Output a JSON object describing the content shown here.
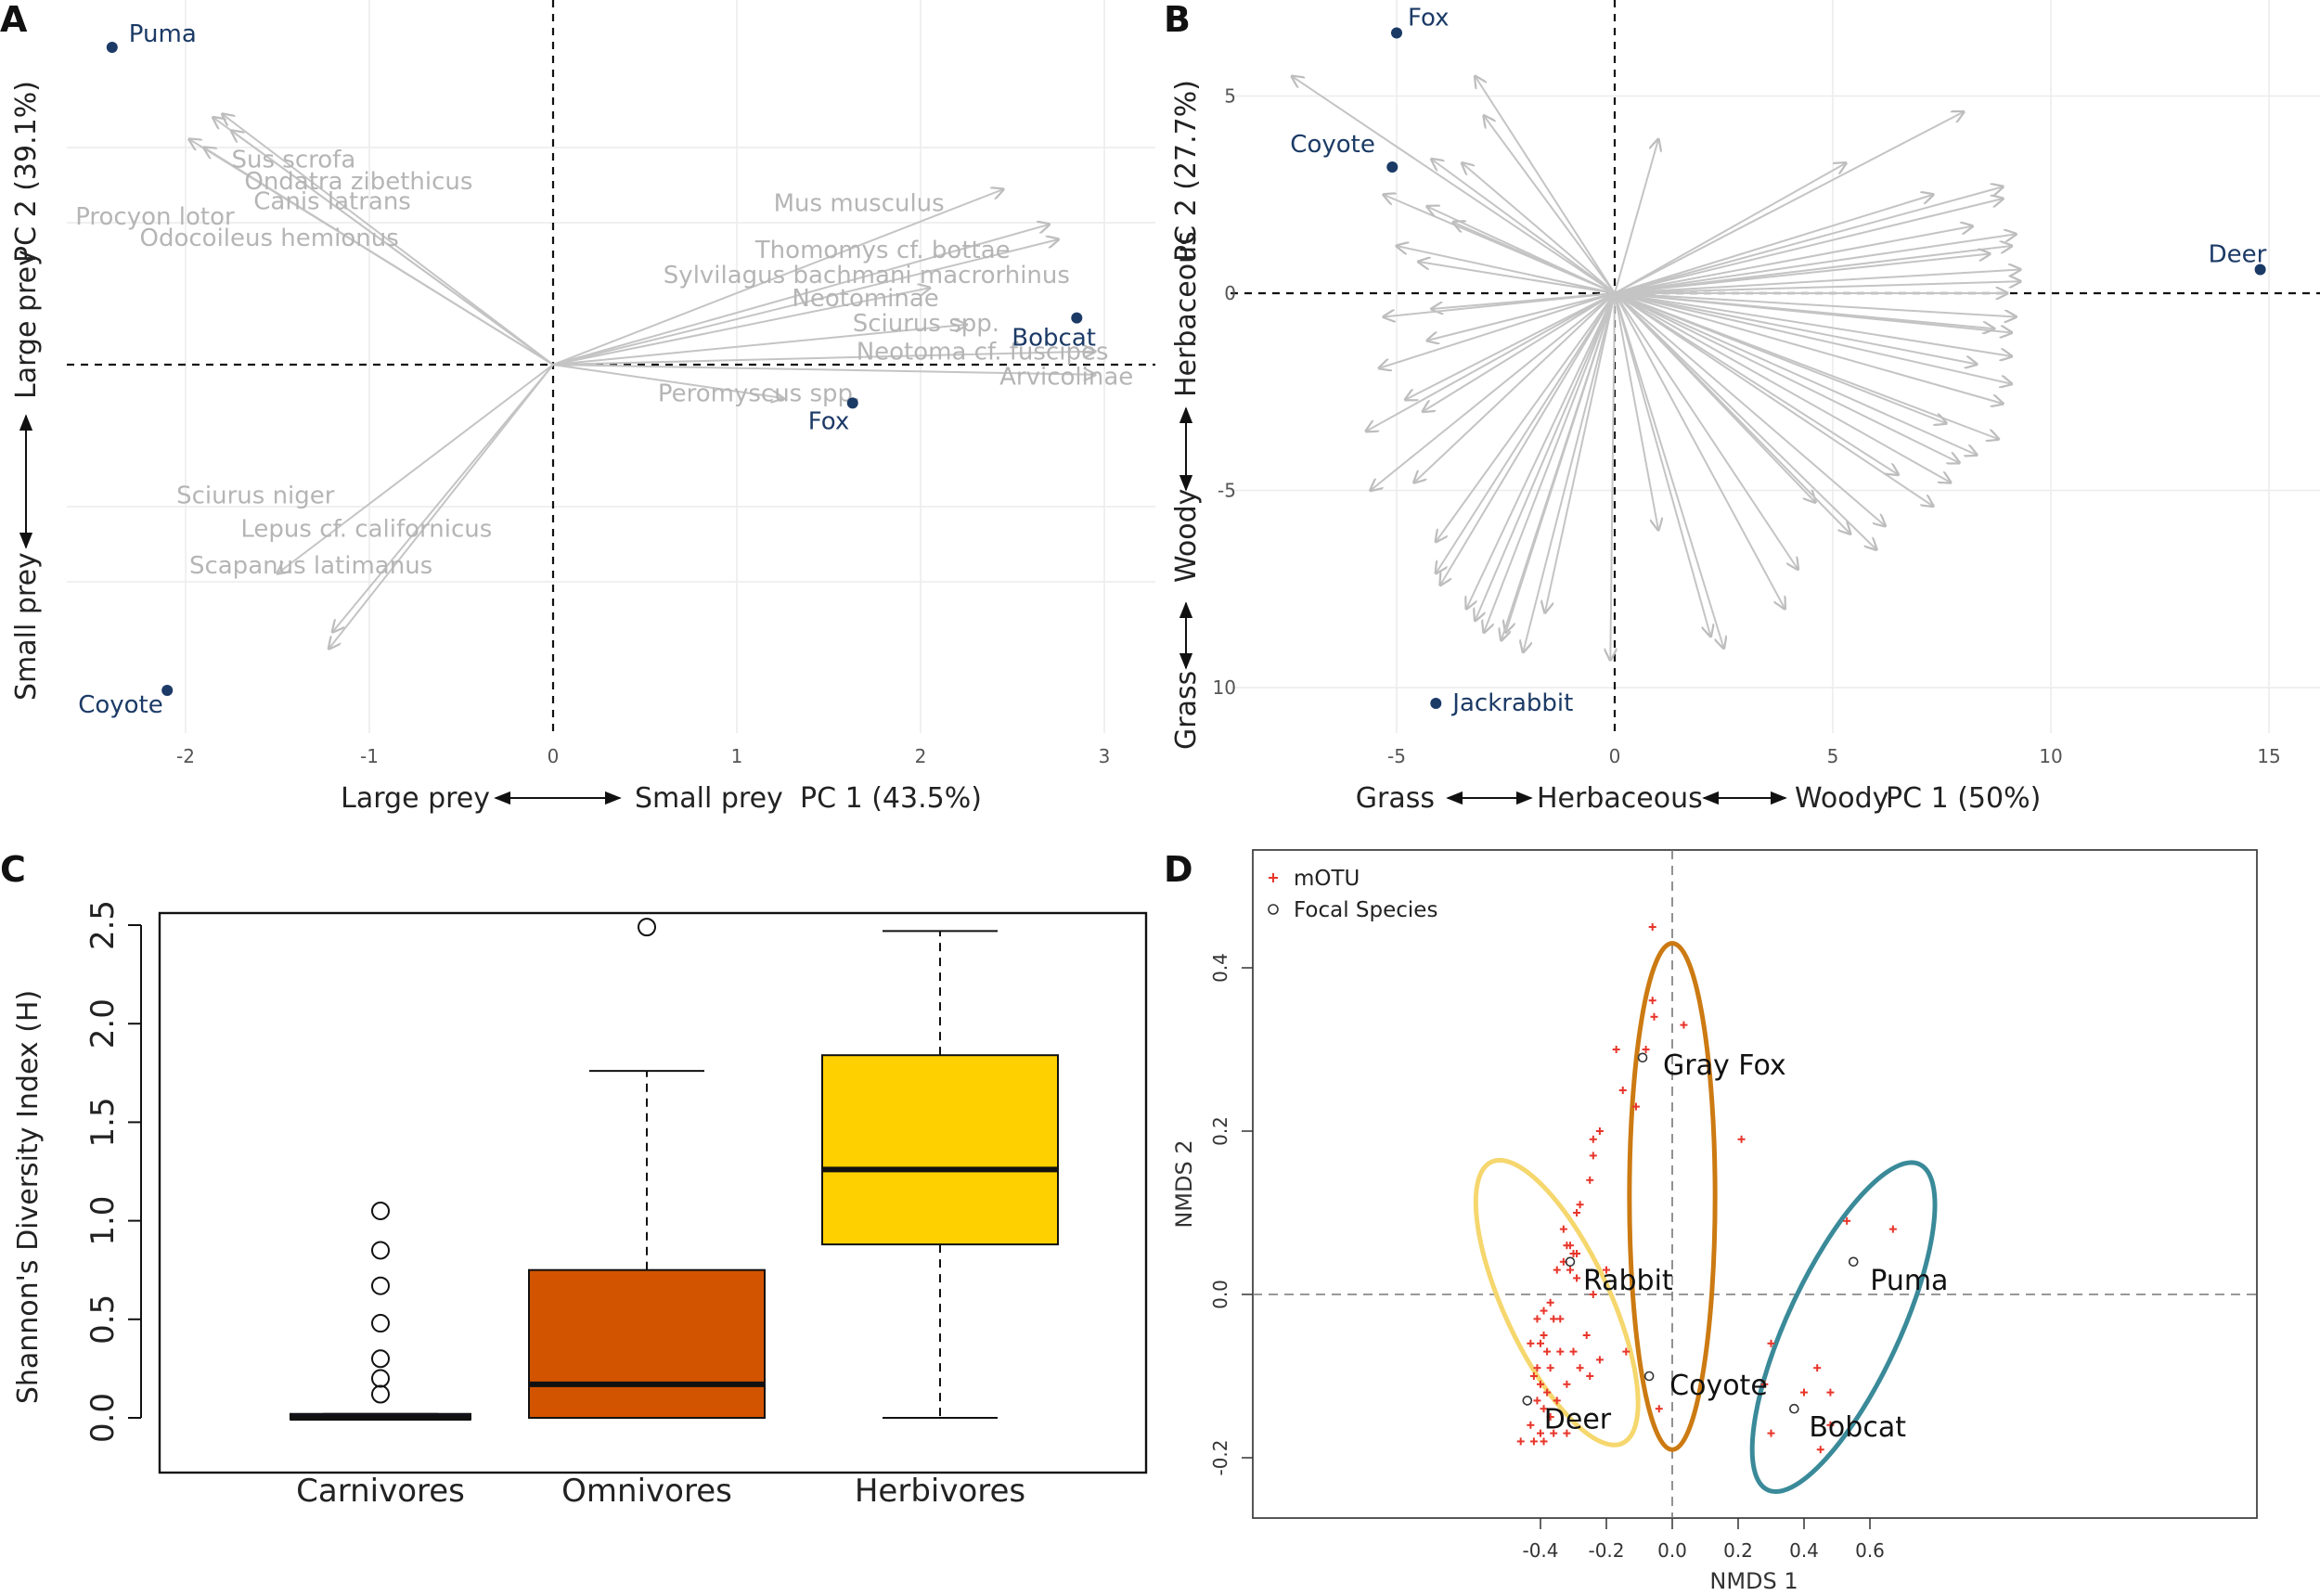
{
  "chart_data": [
    {
      "panel": "A",
      "type": "scatter",
      "xlabel": "PC 1 (43.5%)",
      "xlabel_left": "Large prey",
      "xlabel_right": "Small prey",
      "ylabel": "PC 2 (39.1%)",
      "ylabel_bottom": "Small prey",
      "ylabel_top": "Large prey",
      "x_ticks": [
        -2,
        -1,
        0,
        1,
        2,
        3
      ],
      "y_ticks": [],
      "points": [
        {
          "name": "Puma",
          "x": -2.4,
          "y": 1.9
        },
        {
          "name": "Coyote",
          "x": -2.1,
          "y": -1.95
        },
        {
          "name": "Bobcat",
          "x": 2.85,
          "y": 0.28
        },
        {
          "name": "Fox",
          "x": 1.63,
          "y": -0.23
        }
      ],
      "loadings": [
        {
          "name": "Sus scrofa",
          "x": -1.8,
          "y": 1.5
        },
        {
          "name": "Ondatra zibethicus",
          "x": -1.85,
          "y": 1.48
        },
        {
          "name": "Canis latrans",
          "x": -1.75,
          "y": 1.4
        },
        {
          "name": "Procyon lotor",
          "x": -1.98,
          "y": 1.35
        },
        {
          "name": "Odocoileus hemionus",
          "x": -1.9,
          "y": 1.3
        },
        {
          "name": "Mus musculus",
          "x": 2.45,
          "y": 1.05
        },
        {
          "name": "Thomomys cf. bottae",
          "x": 2.7,
          "y": 0.84
        },
        {
          "name": "Sylvilagus bachmani macrorhinus",
          "x": 2.75,
          "y": 0.75
        },
        {
          "name": "Neotominae",
          "x": 2.05,
          "y": 0.46
        },
        {
          "name": "Sciurus spp.",
          "x": 2.25,
          "y": 0.24
        },
        {
          "name": "Neotoma cf. fuscipes",
          "x": 2.95,
          "y": 0.08
        },
        {
          "name": "Arvicolinae",
          "x": 2.95,
          "y": -0.06
        },
        {
          "name": "Peromyscus spp.",
          "x": 1.25,
          "y": -0.2
        },
        {
          "name": "Sciurus niger",
          "x": -1.5,
          "y": -1.25
        },
        {
          "name": "Lepus cf. californicus",
          "x": -1.2,
          "y": -1.6
        },
        {
          "name": "Scapanus latimanus",
          "x": -1.22,
          "y": -1.7
        }
      ]
    },
    {
      "panel": "B",
      "type": "scatter",
      "xlabel": "PC 1 (50%)",
      "xlabel_left": "Grass",
      "xlabel_mid": "Herbaceous",
      "xlabel_right": "Woody",
      "ylabel": "PC 2 (27.7%)",
      "ylabel_bottom": "Grass",
      "ylabel_mid": "Woody",
      "ylabel_top": "Herbaceous",
      "x_ticks": [
        -5,
        0,
        5,
        10,
        15
      ],
      "y_ticks": [
        5,
        0,
        -5,
        10
      ],
      "points": [
        {
          "name": "Fox",
          "x": -5.0,
          "y": 6.6
        },
        {
          "name": "Coyote",
          "x": -5.1,
          "y": 3.2
        },
        {
          "name": "Deer",
          "x": 14.8,
          "y": 0.6
        },
        {
          "name": "Jackrabbit",
          "x": -4.1,
          "y": -10.4
        }
      ]
    },
    {
      "panel": "C",
      "type": "box",
      "ylabel": "Shannon's Diversity Index (H)",
      "ylim": [
        0,
        2.5
      ],
      "y_ticks": [
        "0.0",
        "0.5",
        "1.0",
        "1.5",
        "2.0",
        "2.5"
      ],
      "categories": [
        "Carnivores",
        "Omnivores",
        "Herbivores"
      ],
      "colors": [
        "#1a1a7a",
        "#d35400",
        "#ffd000"
      ],
      "boxes": [
        {
          "min": 0.0,
          "q1": 0.0,
          "median": 0.0,
          "q3": 0.02,
          "max": 0.02,
          "outliers": [
            0.12,
            0.2,
            0.3,
            0.48,
            0.67,
            0.85,
            1.05
          ]
        },
        {
          "min": 0.0,
          "q1": 0.0,
          "median": 0.17,
          "q3": 0.75,
          "max": 1.76,
          "outliers": [
            2.49
          ]
        },
        {
          "min": 0.0,
          "q1": 0.88,
          "median": 1.26,
          "q3": 1.84,
          "max": 2.47,
          "outliers": []
        }
      ]
    },
    {
      "panel": "D",
      "type": "scatter",
      "xlabel": "NMDS 1",
      "ylabel": "NMDS 2",
      "x_ticks": [
        "-0.4",
        "-0.2",
        "0.0",
        "0.2",
        "0.4",
        "0.6"
      ],
      "y_ticks": [
        "-0.2",
        "0.0",
        "0.2",
        "0.4"
      ],
      "legend": [
        {
          "label": "mOTU",
          "symbol": "cross",
          "color": "#e8352a"
        },
        {
          "label": "Focal Species",
          "symbol": "circle",
          "color": "#333333"
        }
      ],
      "focal_species": [
        {
          "name": "Gray Fox",
          "x": -0.09,
          "y": 0.29
        },
        {
          "name": "Rabbit",
          "x": -0.31,
          "y": 0.04
        },
        {
          "name": "Coyote",
          "x": -0.07,
          "y": -0.1
        },
        {
          "name": "Deer",
          "x": -0.44,
          "y": -0.13
        },
        {
          "name": "Puma",
          "x": 0.55,
          "y": 0.04
        },
        {
          "name": "Bobcat",
          "x": 0.37,
          "y": -0.14
        }
      ],
      "ellipse_colors": [
        "#f5d76e",
        "#cc7a12",
        "#3a8a99"
      ],
      "motu": [
        [
          -0.06,
          0.45
        ],
        [
          -0.06,
          0.36
        ],
        [
          -0.055,
          0.34
        ],
        [
          -0.08,
          0.3
        ],
        [
          0.035,
          0.33
        ],
        [
          -0.17,
          0.3
        ],
        [
          -0.15,
          0.25
        ],
        [
          -0.11,
          0.23
        ],
        [
          -0.22,
          0.2
        ],
        [
          -0.24,
          0.19
        ],
        [
          -0.24,
          0.17
        ],
        [
          -0.25,
          0.14
        ],
        [
          -0.28,
          0.11
        ],
        [
          -0.29,
          0.1
        ],
        [
          -0.33,
          0.08
        ],
        [
          -0.32,
          0.06
        ],
        [
          -0.31,
          0.06
        ],
        [
          -0.3,
          0.05
        ],
        [
          -0.29,
          0.05
        ],
        [
          -0.33,
          0.04
        ],
        [
          -0.35,
          0.03
        ],
        [
          -0.31,
          0.03
        ],
        [
          -0.29,
          0.02
        ],
        [
          -0.2,
          0.03
        ],
        [
          -0.24,
          0.0
        ],
        [
          -0.37,
          -0.01
        ],
        [
          -0.39,
          -0.02
        ],
        [
          -0.41,
          -0.03
        ],
        [
          -0.36,
          -0.03
        ],
        [
          -0.34,
          -0.03
        ],
        [
          -0.39,
          -0.05
        ],
        [
          -0.26,
          -0.05
        ],
        [
          -0.43,
          -0.06
        ],
        [
          -0.4,
          -0.06
        ],
        [
          -0.38,
          -0.07
        ],
        [
          -0.34,
          -0.07
        ],
        [
          -0.3,
          -0.07
        ],
        [
          -0.22,
          -0.08
        ],
        [
          -0.14,
          -0.07
        ],
        [
          -0.41,
          -0.09
        ],
        [
          -0.37,
          -0.09
        ],
        [
          -0.28,
          -0.09
        ],
        [
          -0.25,
          -0.1
        ],
        [
          -0.42,
          -0.1
        ],
        [
          -0.4,
          -0.11
        ],
        [
          -0.32,
          -0.11
        ],
        [
          -0.38,
          -0.12
        ],
        [
          -0.35,
          -0.13
        ],
        [
          -0.41,
          -0.13
        ],
        [
          -0.39,
          -0.14
        ],
        [
          -0.37,
          -0.15
        ],
        [
          -0.43,
          -0.16
        ],
        [
          -0.4,
          -0.17
        ],
        [
          -0.36,
          -0.17
        ],
        [
          -0.32,
          -0.17
        ],
        [
          -0.46,
          -0.18
        ],
        [
          -0.39,
          -0.18
        ],
        [
          -0.42,
          -0.18
        ],
        [
          -0.04,
          -0.14
        ],
        [
          0.21,
          0.19
        ],
        [
          0.28,
          -0.11
        ],
        [
          0.3,
          -0.06
        ],
        [
          0.3,
          -0.17
        ],
        [
          0.4,
          -0.12
        ],
        [
          0.44,
          -0.09
        ],
        [
          0.48,
          -0.12
        ],
        [
          0.48,
          -0.16
        ],
        [
          0.45,
          -0.19
        ],
        [
          0.53,
          0.09
        ],
        [
          0.67,
          0.08
        ]
      ]
    }
  ]
}
